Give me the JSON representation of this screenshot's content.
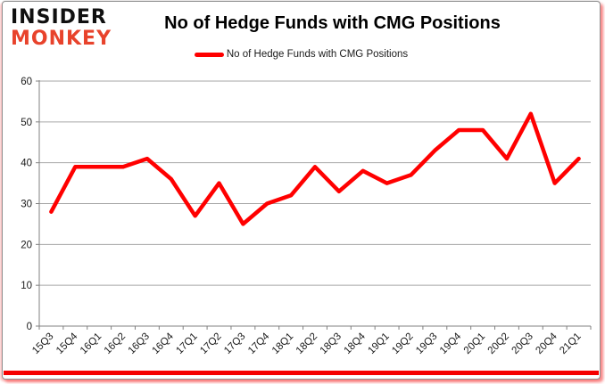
{
  "brand": {
    "line1": "INSIDER",
    "line2": "MONKEY",
    "line1_color": "#101010",
    "line2_color": "#e8432c"
  },
  "header": {
    "title": "No of Hedge Funds with CMG Positions"
  },
  "legend": {
    "label": "No of Hedge Funds with CMG Positions",
    "swatch_color": "#ff0000"
  },
  "chart_data": {
    "type": "line",
    "title": "No of Hedge Funds with CMG Positions",
    "series": [
      {
        "name": "No of Hedge Funds with CMG Positions",
        "values": [
          28,
          39,
          39,
          39,
          41,
          36,
          27,
          35,
          25,
          30,
          32,
          39,
          33,
          38,
          35,
          37,
          43,
          48,
          48,
          41,
          52,
          35,
          41
        ]
      }
    ],
    "categories": [
      "15Q3",
      "15Q4",
      "16Q1",
      "16Q2",
      "16Q3",
      "16Q4",
      "17Q1",
      "17Q2",
      "17Q3",
      "17Q4",
      "18Q1",
      "18Q2",
      "18Q3",
      "18Q4",
      "19Q1",
      "19Q2",
      "19Q3",
      "19Q4",
      "20Q1",
      "20Q2",
      "20Q3",
      "20Q4",
      "21Q1"
    ],
    "xlabel": "",
    "ylabel": "",
    "ylim": [
      0,
      60
    ],
    "y_ticks": [
      0,
      10,
      20,
      30,
      40,
      50,
      60
    ],
    "grid": "horizontal",
    "legend_position": "top",
    "line_color": "#ff0000",
    "gridline_color": "#a6a6a6",
    "axis_color": "#808080",
    "tick_label_color": "#1a1a1a"
  },
  "footer": {
    "accent_bar_color": "#f50000"
  }
}
